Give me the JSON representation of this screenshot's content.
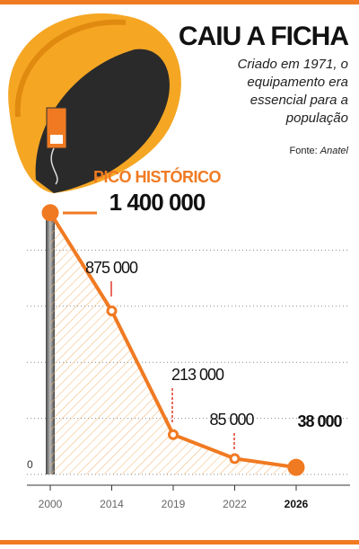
{
  "chart_data": {
    "type": "line",
    "title": "CAIU A FICHA",
    "subtitle": "Criado em 1971, o equipamento era essencial para a população",
    "source": {
      "label": "Fonte:",
      "name": "Anatel"
    },
    "annotation": "PICO HISTÓRICO",
    "categories": [
      "2000",
      "2014",
      "2019",
      "2022",
      "2026"
    ],
    "values": [
      1400000,
      875000,
      213000,
      85000,
      38000
    ],
    "value_labels": [
      "1 400 000",
      "875 000",
      "213 000",
      "85 000",
      "38 000"
    ],
    "color": "#f07a22",
    "ylim": [
      0,
      1500000
    ],
    "yticks": [
      0
    ],
    "gridlines": [
      300000,
      600000,
      900000,
      1200000
    ]
  }
}
